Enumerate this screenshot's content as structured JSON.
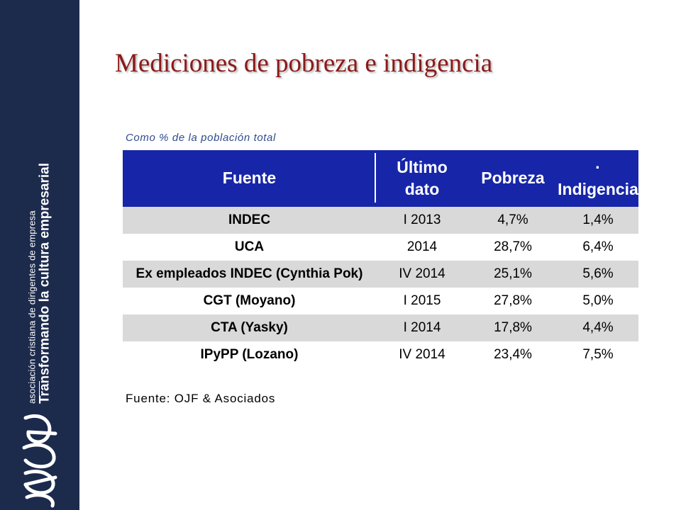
{
  "brand": {
    "line1": "asociación cristiana de dirigentes de empresa",
    "line2": "Transformando la cultura empresarial",
    "logo_text": "acde"
  },
  "title": "Mediciones de pobreza e indigencia",
  "subtitle": "Como % de la población total",
  "table": {
    "headers": {
      "fuente": "Fuente",
      "ultimo_l1": "Último",
      "ultimo_l2": "dato",
      "pobreza": "Pobreza",
      "indigencia": "· Indigencia"
    },
    "rows": [
      {
        "fuente": "INDEC",
        "dato": "I 2013",
        "pobreza": "4,7%",
        "indigencia": "1,4%"
      },
      {
        "fuente": "UCA",
        "dato": "2014",
        "pobreza": "28,7%",
        "indigencia": "6,4%"
      },
      {
        "fuente": "Ex empleados INDEC (Cynthia Pok)",
        "dato": "IV 2014",
        "pobreza": "25,1%",
        "indigencia": "5,6%"
      },
      {
        "fuente": "CGT (Moyano)",
        "dato": "I 2015",
        "pobreza": "27,8%",
        "indigencia": "5,0%"
      },
      {
        "fuente": "CTA (Yasky)",
        "dato": "I 2014",
        "pobreza": "17,8%",
        "indigencia": "4,4%"
      },
      {
        "fuente": "IPyPP (Lozano)",
        "dato": "IV 2014",
        "pobreza": "23,4%",
        "indigencia": "7,5%"
      }
    ]
  },
  "source_note": "Fuente: OJF & Asociados",
  "colors": {
    "sidebar": "#1c2a4c",
    "title": "#8b1a1a",
    "header_bg": "#1726a8",
    "shaded_row": "#d9d9d9",
    "subtitle": "#2f4b8f"
  }
}
